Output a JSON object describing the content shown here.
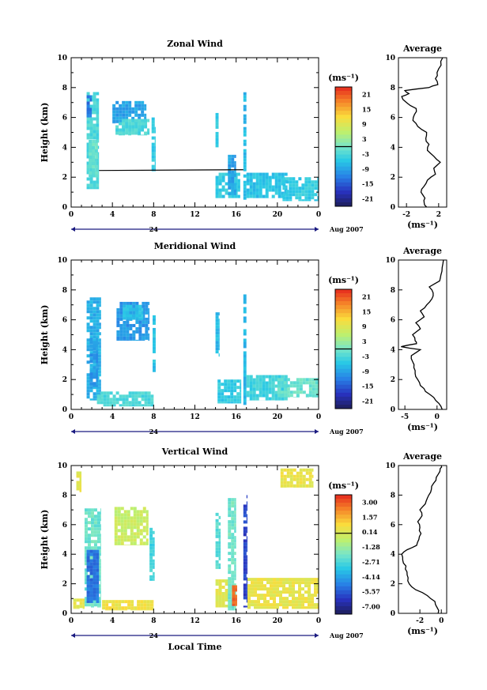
{
  "chart_data": [
    {
      "type": "heatmap",
      "title": "Zonal Wind",
      "ylabel": "Height (km)",
      "xlabel": "",
      "date_label": "24",
      "month_label": "Aug 2007",
      "xticks": [
        "0",
        "4",
        "8",
        "12",
        "16",
        "20",
        "0"
      ],
      "yticks": [
        "0",
        "2",
        "4",
        "6",
        "8",
        "10"
      ],
      "xlim": [
        0,
        24
      ],
      "ylim": [
        0,
        10
      ],
      "colorbar": {
        "unit_label": "(ms⁻¹)",
        "ticks": [
          "21",
          "15",
          "9",
          "3",
          "-3",
          "-9",
          "-15",
          "-21"
        ],
        "range": [
          -24,
          24
        ]
      },
      "patches": [
        {
          "x": [
            1.5,
            2.7
          ],
          "y": [
            1.2,
            7.7
          ],
          "v": -3
        },
        {
          "x": [
            1.5,
            2.0
          ],
          "y": [
            6.0,
            7.7
          ],
          "v": -13
        },
        {
          "x": [
            1.7,
            2.6
          ],
          "y": [
            2.0,
            4.5
          ],
          "v": -1
        },
        {
          "x": [
            4.0,
            7.3
          ],
          "y": [
            5.6,
            7.1
          ],
          "v": -9
        },
        {
          "x": [
            4.3,
            7.6
          ],
          "y": [
            4.8,
            5.9
          ],
          "v": -3
        },
        {
          "x": [
            7.8,
            8.2
          ],
          "y": [
            2.4,
            6.0
          ],
          "v": -5
        },
        {
          "x": [
            14.0,
            14.3
          ],
          "y": [
            4.0,
            6.3
          ],
          "v": -5
        },
        {
          "x": [
            14.0,
            16.4
          ],
          "y": [
            0.6,
            2.3
          ],
          "v": -5
        },
        {
          "x": [
            15.2,
            16.0
          ],
          "y": [
            0.8,
            3.5
          ],
          "v": -9
        },
        {
          "x": [
            16.7,
            17.0
          ],
          "y": [
            0.3,
            7.9
          ],
          "v": -7
        },
        {
          "x": [
            17.0,
            21.0
          ],
          "y": [
            0.6,
            2.3
          ],
          "v": -6
        },
        {
          "x": [
            20.5,
            24.0
          ],
          "y": [
            0.4,
            2.0
          ],
          "v": -5
        }
      ],
      "contour_lines": [
        {
          "x": [
            2.7,
            16.7
          ],
          "y": [
            2.45,
            2.5
          ]
        }
      ],
      "profile": {
        "title": "Average",
        "xlabel": "(ms⁻¹)",
        "xticks": [
          "-2",
          "2"
        ],
        "xlim": [
          -3,
          3
        ],
        "yticks": [
          "0",
          "2",
          "4",
          "6",
          "8",
          "10"
        ],
        "heights": [
          0,
          0.3,
          0.6,
          1.0,
          1.4,
          1.8,
          2.2,
          2.6,
          3.0,
          3.4,
          3.8,
          4.2,
          4.6,
          5.0,
          5.4,
          5.8,
          6.2,
          6.6,
          7.0,
          7.4,
          7.6,
          7.8,
          8.0,
          8.2,
          8.6,
          9.0,
          9.5,
          10.0
        ],
        "values": [
          0.5,
          0.2,
          0.3,
          -0.2,
          0.2,
          0.6,
          1.6,
          1.4,
          2.2,
          1.4,
          0.6,
          0.8,
          0.4,
          0.5,
          -0.6,
          -1.2,
          -1.0,
          -0.8,
          -2.0,
          -2.6,
          -1.7,
          -2.2,
          0.8,
          1.9,
          1.6,
          1.8,
          2.3,
          2.5
        ]
      }
    },
    {
      "type": "heatmap",
      "title": "Meridional Wind",
      "ylabel": "Height (km)",
      "xlabel": "",
      "date_label": "24",
      "month_label": "Aug 2007",
      "xticks": [
        "0",
        "4",
        "8",
        "12",
        "16",
        "20",
        "0"
      ],
      "yticks": [
        "0",
        "2",
        "4",
        "6",
        "8",
        "10"
      ],
      "xlim": [
        0,
        24
      ],
      "ylim": [
        0,
        10
      ],
      "colorbar": {
        "unit_label": "(ms⁻¹)",
        "ticks": [
          "21",
          "15",
          "9",
          "3",
          "-3",
          "-9",
          "-15",
          "-21"
        ],
        "range": [
          -24,
          24
        ]
      },
      "patches": [
        {
          "x": [
            1.5,
            2.9
          ],
          "y": [
            0.6,
            7.5
          ],
          "v": -8
        },
        {
          "x": [
            1.8,
            2.6
          ],
          "y": [
            1.5,
            4.8
          ],
          "v": -10
        },
        {
          "x": [
            4.4,
            7.6
          ],
          "y": [
            4.6,
            7.2
          ],
          "v": -10
        },
        {
          "x": [
            5.0,
            7.0
          ],
          "y": [
            6.0,
            7.0
          ],
          "v": -6
        },
        {
          "x": [
            7.9,
            8.2
          ],
          "y": [
            2.5,
            6.3
          ],
          "v": -6
        },
        {
          "x": [
            2.5,
            8.0
          ],
          "y": [
            0.2,
            1.2
          ],
          "v": -3
        },
        {
          "x": [
            14.0,
            14.4
          ],
          "y": [
            3.4,
            6.5
          ],
          "v": -7
        },
        {
          "x": [
            14.2,
            16.5
          ],
          "y": [
            0.4,
            2.0
          ],
          "v": -5
        },
        {
          "x": [
            16.7,
            17.0
          ],
          "y": [
            0.3,
            7.7
          ],
          "v": -7
        },
        {
          "x": [
            17.0,
            21.0
          ],
          "y": [
            0.6,
            2.3
          ],
          "v": -4
        },
        {
          "x": [
            20.0,
            24.0
          ],
          "y": [
            0.8,
            2.1
          ],
          "v": -1
        }
      ],
      "contour_lines": [],
      "profile": {
        "title": "Average",
        "xlabel": "(ms⁻¹)",
        "xticks": [
          "-5",
          "0"
        ],
        "xlim": [
          -6,
          1.5
        ],
        "yticks": [
          "0",
          "2",
          "4",
          "6",
          "8",
          "10"
        ],
        "heights": [
          0,
          0.4,
          0.8,
          1.2,
          1.6,
          2.0,
          2.4,
          2.8,
          3.2,
          3.6,
          4.0,
          4.2,
          4.4,
          4.6,
          5.0,
          5.4,
          5.8,
          6.2,
          6.6,
          7.0,
          7.4,
          7.8,
          8.2,
          8.6,
          9.0,
          9.5,
          10.0
        ],
        "values": [
          0.8,
          0.3,
          -0.5,
          -1.8,
          -2.6,
          -3.0,
          -3.4,
          -3.6,
          -3.8,
          -4.0,
          -2.6,
          -5.6,
          -3.2,
          -3.4,
          -3.8,
          -2.6,
          -3.3,
          -2.0,
          -2.6,
          -1.6,
          -0.8,
          -0.6,
          -1.2,
          0.4,
          0.6,
          0.8,
          1.0
        ]
      }
    },
    {
      "type": "heatmap",
      "title": "Vertical Wind",
      "ylabel": "Height (km)",
      "xlabel": "Local Time",
      "date_label": "24",
      "month_label": "Aug 2007",
      "xticks": [
        "0",
        "4",
        "8",
        "12",
        "16",
        "20",
        "0"
      ],
      "yticks": [
        "0",
        "2",
        "4",
        "6",
        "8",
        "10"
      ],
      "xlim": [
        0,
        24
      ],
      "ylim": [
        0,
        10
      ],
      "colorbar": {
        "unit_label": "(ms⁻¹)",
        "ticks": [
          "3.00",
          "1.57",
          "0.14",
          "-1.28",
          "-2.71",
          "-4.14",
          "-5.57",
          "-7.00"
        ],
        "range": [
          -8.4,
          4.0
        ]
      },
      "patches": [
        {
          "x": [
            0.2,
            1.3
          ],
          "y": [
            0.3,
            1.0
          ],
          "v": 0.3
        },
        {
          "x": [
            0.5,
            1.0
          ],
          "y": [
            8.2,
            9.6
          ],
          "v": 0.3
        },
        {
          "x": [
            1.3,
            2.9
          ],
          "y": [
            0.4,
            7.1
          ],
          "v": -2.4
        },
        {
          "x": [
            1.5,
            2.7
          ],
          "y": [
            0.7,
            4.3
          ],
          "v": -5.6
        },
        {
          "x": [
            3.0,
            8.0
          ],
          "y": [
            0.2,
            0.9
          ],
          "v": 0.6
        },
        {
          "x": [
            4.2,
            7.5
          ],
          "y": [
            4.6,
            7.2
          ],
          "v": -0.4
        },
        {
          "x": [
            7.6,
            8.1
          ],
          "y": [
            2.2,
            6.0
          ],
          "v": -3.2
        },
        {
          "x": [
            14.0,
            14.5
          ],
          "y": [
            3.0,
            6.8
          ],
          "v": -2.8
        },
        {
          "x": [
            14.0,
            15.5
          ],
          "y": [
            0.4,
            2.3
          ],
          "v": 0.2
        },
        {
          "x": [
            15.2,
            16.0
          ],
          "y": [
            0.2,
            7.8
          ],
          "v": -2.3
        },
        {
          "x": [
            15.6,
            16.1
          ],
          "y": [
            0.5,
            1.9
          ],
          "v": 3.0
        },
        {
          "x": [
            16.7,
            17.1
          ],
          "y": [
            0.4,
            8.0
          ],
          "v": -6.6
        },
        {
          "x": [
            17.1,
            24.0
          ],
          "y": [
            0.3,
            2.4
          ],
          "v": 0.4
        },
        {
          "x": [
            20.3,
            23.5
          ],
          "y": [
            8.5,
            9.8
          ],
          "v": 0.4
        }
      ],
      "contour_lines": [],
      "profile": {
        "title": "Average",
        "xlabel": "(ms⁻¹)",
        "xticks": [
          "-2",
          "0"
        ],
        "xlim": [
          -4,
          0.5
        ],
        "yticks": [
          "0",
          "2",
          "4",
          "6",
          "8",
          "10"
        ],
        "heights": [
          0,
          0.4,
          0.8,
          1.2,
          1.6,
          2.0,
          2.4,
          2.8,
          3.2,
          3.6,
          4.0,
          4.3,
          4.6,
          5.0,
          5.4,
          5.8,
          6.2,
          6.6,
          7.0,
          7.4,
          7.8,
          8.2,
          8.6,
          9.0,
          9.4,
          9.8,
          10.0
        ],
        "values": [
          -0.3,
          -0.4,
          -0.6,
          -1.3,
          -2.4,
          -3.0,
          -3.1,
          -3.2,
          -3.3,
          -3.6,
          -3.7,
          -3.2,
          -2.3,
          -2.1,
          -1.9,
          -2.0,
          -2.2,
          -1.8,
          -2.0,
          -1.5,
          -1.3,
          -1.0,
          -0.9,
          -0.5,
          -0.3,
          -0.1,
          0.0
        ]
      }
    }
  ]
}
